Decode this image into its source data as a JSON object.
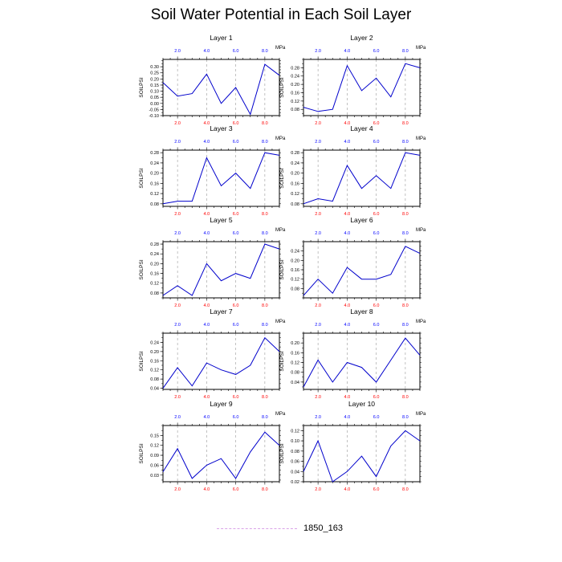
{
  "title": "Soil Water Potential in Each Soil Layer",
  "legend": {
    "label": "1850_163",
    "color": "#d9a3e8"
  },
  "colors": {
    "line": "#0000cc",
    "top_ticks": "#0000ff",
    "bottom_ticks": "#ff0000",
    "guides": "#999999"
  },
  "chart_data": [
    {
      "type": "line",
      "title": "Layer 1",
      "ylabel": "SOILPSI",
      "unit_label": "MPa",
      "x": [
        1,
        2,
        3,
        4,
        5,
        6,
        7,
        8,
        9
      ],
      "values": [
        0.17,
        0.06,
        0.08,
        0.24,
        0.0,
        0.13,
        -0.09,
        0.32,
        0.23
      ],
      "ylim": [
        -0.1,
        0.36
      ],
      "yticks": [
        -0.1,
        -0.05,
        0.0,
        0.05,
        0.1,
        0.15,
        0.2,
        0.25,
        0.3
      ],
      "ytick_labels": [
        "-0.10",
        "-0.05",
        "0.00",
        "0.05",
        "0.10",
        "0.15",
        "0.20",
        "0.25",
        "0.30"
      ],
      "xlim": [
        1,
        9
      ],
      "xticks": [
        2,
        4,
        6,
        8
      ],
      "xtick_labels": [
        "2.0",
        "4.0",
        "6.0",
        "8.0"
      ]
    },
    {
      "type": "line",
      "title": "Layer 2",
      "ylabel": "SOILPSI",
      "unit_label": "MPa",
      "x": [
        1,
        2,
        3,
        4,
        5,
        6,
        7,
        8,
        9
      ],
      "values": [
        0.09,
        0.07,
        0.08,
        0.29,
        0.17,
        0.23,
        0.14,
        0.3,
        0.28
      ],
      "ylim": [
        0.05,
        0.32
      ],
      "yticks": [
        0.08,
        0.12,
        0.16,
        0.2,
        0.24,
        0.28
      ],
      "ytick_labels": [
        "0.08",
        "0.12",
        "0.16",
        "0.20",
        "0.24",
        "0.28"
      ],
      "xlim": [
        1,
        9
      ],
      "xticks": [
        2,
        4,
        6,
        8
      ],
      "xtick_labels": [
        "2.0",
        "4.0",
        "6.0",
        "8.0"
      ]
    },
    {
      "type": "line",
      "title": "Layer 3",
      "ylabel": "SOILPSI",
      "unit_label": "MPa",
      "x": [
        1,
        2,
        3,
        4,
        5,
        6,
        7,
        8,
        9
      ],
      "values": [
        0.08,
        0.09,
        0.09,
        0.26,
        0.15,
        0.2,
        0.14,
        0.28,
        0.27
      ],
      "ylim": [
        0.07,
        0.29
      ],
      "yticks": [
        0.08,
        0.12,
        0.16,
        0.2,
        0.24,
        0.28
      ],
      "ytick_labels": [
        "0.08",
        "0.12",
        "0.16",
        "0.20",
        "0.24",
        "0.28"
      ],
      "xlim": [
        1,
        9
      ],
      "xticks": [
        2,
        4,
        6,
        8
      ],
      "xtick_labels": [
        "2.0",
        "4.0",
        "6.0",
        "8.0"
      ]
    },
    {
      "type": "line",
      "title": "Layer 4",
      "ylabel": "SOILPSI",
      "unit_label": "MPa",
      "x": [
        1,
        2,
        3,
        4,
        5,
        6,
        7,
        8,
        9
      ],
      "values": [
        0.08,
        0.1,
        0.09,
        0.23,
        0.14,
        0.19,
        0.14,
        0.28,
        0.27
      ],
      "ylim": [
        0.07,
        0.29
      ],
      "yticks": [
        0.08,
        0.12,
        0.16,
        0.2,
        0.24,
        0.28
      ],
      "ytick_labels": [
        "0.08",
        "0.12",
        "0.16",
        "0.20",
        "0.24",
        "0.28"
      ],
      "xlim": [
        1,
        9
      ],
      "xticks": [
        2,
        4,
        6,
        8
      ],
      "xtick_labels": [
        "2.0",
        "4.0",
        "6.0",
        "8.0"
      ]
    },
    {
      "type": "line",
      "title": "Layer 5",
      "ylabel": "SOILPSI",
      "unit_label": "MPa",
      "x": [
        1,
        2,
        3,
        4,
        5,
        6,
        7,
        8,
        9
      ],
      "values": [
        0.07,
        0.11,
        0.07,
        0.2,
        0.13,
        0.16,
        0.14,
        0.28,
        0.26
      ],
      "ylim": [
        0.06,
        0.29
      ],
      "yticks": [
        0.08,
        0.12,
        0.16,
        0.2,
        0.24,
        0.28
      ],
      "ytick_labels": [
        "0.08",
        "0.12",
        "0.16",
        "0.20",
        "0.24",
        "0.28"
      ],
      "xlim": [
        1,
        9
      ],
      "xticks": [
        2,
        4,
        6,
        8
      ],
      "xtick_labels": [
        "2.0",
        "4.0",
        "6.0",
        "8.0"
      ]
    },
    {
      "type": "line",
      "title": "Layer 6",
      "ylabel": "SOILPSI",
      "unit_label": "MPa",
      "x": [
        1,
        2,
        3,
        4,
        5,
        6,
        7,
        8,
        9
      ],
      "values": [
        0.05,
        0.12,
        0.06,
        0.17,
        0.12,
        0.12,
        0.14,
        0.26,
        0.23
      ],
      "ylim": [
        0.04,
        0.28
      ],
      "yticks": [
        0.08,
        0.12,
        0.16,
        0.2,
        0.24
      ],
      "ytick_labels": [
        "0.08",
        "0.12",
        "0.16",
        "0.20",
        "0.24"
      ],
      "xlim": [
        1,
        9
      ],
      "xticks": [
        2,
        4,
        6,
        8
      ],
      "xtick_labels": [
        "2.0",
        "4.0",
        "6.0",
        "8.0"
      ]
    },
    {
      "type": "line",
      "title": "Layer 7",
      "ylabel": "SOILPSI",
      "unit_label": "MPa",
      "x": [
        1,
        2,
        3,
        4,
        5,
        6,
        7,
        8,
        9
      ],
      "values": [
        0.04,
        0.13,
        0.05,
        0.15,
        0.12,
        0.1,
        0.14,
        0.26,
        0.2
      ],
      "ylim": [
        0.035,
        0.28
      ],
      "yticks": [
        0.04,
        0.08,
        0.12,
        0.16,
        0.2,
        0.24
      ],
      "ytick_labels": [
        "0.04",
        "0.08",
        "0.12",
        "0.16",
        "0.20",
        "0.24"
      ],
      "xlim": [
        1,
        9
      ],
      "xticks": [
        2,
        4,
        6,
        8
      ],
      "xtick_labels": [
        "2.0",
        "4.0",
        "6.0",
        "8.0"
      ]
    },
    {
      "type": "line",
      "title": "Layer 8",
      "ylabel": "SOILPSI",
      "unit_label": "MPa",
      "x": [
        1,
        2,
        3,
        4,
        5,
        6,
        7,
        8,
        9
      ],
      "values": [
        0.02,
        0.13,
        0.04,
        0.12,
        0.1,
        0.04,
        0.13,
        0.22,
        0.15
      ],
      "ylim": [
        0.01,
        0.24
      ],
      "yticks": [
        0.04,
        0.08,
        0.12,
        0.16,
        0.2
      ],
      "ytick_labels": [
        "0.04",
        "0.08",
        "0.12",
        "0.16",
        "0.20"
      ],
      "xlim": [
        1,
        9
      ],
      "xticks": [
        2,
        4,
        6,
        8
      ],
      "xtick_labels": [
        "2.0",
        "4.0",
        "6.0",
        "8.0"
      ]
    },
    {
      "type": "line",
      "title": "Layer 9",
      "ylabel": "SOILPSI",
      "unit_label": "MPa",
      "x": [
        1,
        2,
        3,
        4,
        5,
        6,
        7,
        8,
        9
      ],
      "values": [
        0.04,
        0.11,
        0.02,
        0.06,
        0.08,
        0.02,
        0.1,
        0.16,
        0.12
      ],
      "ylim": [
        0.01,
        0.18
      ],
      "yticks": [
        0.03,
        0.06,
        0.09,
        0.12,
        0.15
      ],
      "ytick_labels": [
        "0.03",
        "0.06",
        "0.09",
        "0.12",
        "0.15"
      ],
      "xlim": [
        1,
        9
      ],
      "xticks": [
        2,
        4,
        6,
        8
      ],
      "xtick_labels": [
        "2.0",
        "4.0",
        "6.0",
        "8.0"
      ]
    },
    {
      "type": "line",
      "title": "Layer 10",
      "ylabel": "SOILPSI",
      "unit_label": "MPa",
      "x": [
        1,
        2,
        3,
        4,
        5,
        6,
        7,
        8,
        9
      ],
      "values": [
        0.04,
        0.1,
        0.02,
        0.04,
        0.07,
        0.03,
        0.09,
        0.12,
        0.1
      ],
      "ylim": [
        0.02,
        0.13
      ],
      "yticks": [
        0.02,
        0.04,
        0.06,
        0.08,
        0.1,
        0.12
      ],
      "ytick_labels": [
        "0.02",
        "0.04",
        "0.06",
        "0.08",
        "0.10",
        "0.12"
      ],
      "xlim": [
        1,
        9
      ],
      "xticks": [
        2,
        4,
        6,
        8
      ],
      "xtick_labels": [
        "2.0",
        "4.0",
        "6.0",
        "8.0"
      ]
    }
  ]
}
